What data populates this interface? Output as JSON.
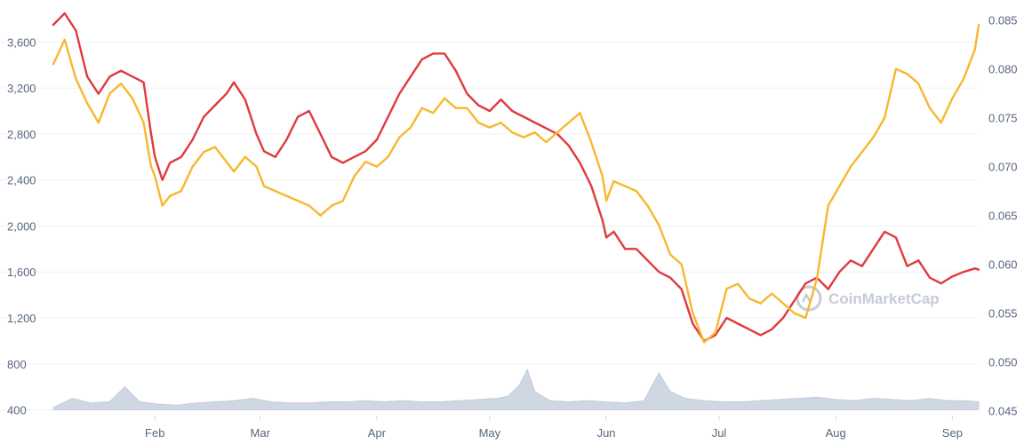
{
  "watermark": "CoinMarketCap",
  "colors": {
    "series_red": "#e03a3e",
    "series_yellow": "#f7b82e",
    "volume": "#cfd6e4",
    "grid": "#eff2f5",
    "text": "#58667e"
  },
  "chart_data": {
    "type": "line",
    "title": "",
    "x_range": [
      "2022-01-05",
      "2022-09-08"
    ],
    "x_ticks": [
      {
        "label": "Feb",
        "date": "2022-02-01"
      },
      {
        "label": "Mar",
        "date": "2022-03-01"
      },
      {
        "label": "Apr",
        "date": "2022-04-01"
      },
      {
        "label": "May",
        "date": "2022-05-01"
      },
      {
        "label": "Jun",
        "date": "2022-06-01"
      },
      {
        "label": "Jul",
        "date": "2022-07-01"
      },
      {
        "label": "Aug",
        "date": "2022-08-01"
      },
      {
        "label": "Sep",
        "date": "2022-09-01"
      }
    ],
    "y_left": {
      "ticks": [
        "400",
        "800",
        "1,200",
        "1,600",
        "2,000",
        "2,400",
        "2,800",
        "3,200",
        "3,600"
      ],
      "range": [
        350,
        3850
      ]
    },
    "y_right": {
      "ticks": [
        "0.045",
        "0.050",
        "0.055",
        "0.060",
        "0.065",
        "0.070",
        "0.075",
        "0.080",
        "0.085"
      ],
      "range": [
        0.0445,
        0.0857
      ]
    },
    "grid": true,
    "series": [
      {
        "axis": "left",
        "color": "#e03a3e",
        "points": [
          [
            "2022-01-05",
            3750
          ],
          [
            "2022-01-08",
            3850
          ],
          [
            "2022-01-11",
            3700
          ],
          [
            "2022-01-14",
            3300
          ],
          [
            "2022-01-17",
            3150
          ],
          [
            "2022-01-20",
            3300
          ],
          [
            "2022-01-23",
            3350
          ],
          [
            "2022-01-26",
            3300
          ],
          [
            "2022-01-29",
            3250
          ],
          [
            "2022-01-31",
            2800
          ],
          [
            "2022-02-01",
            2600
          ],
          [
            "2022-02-03",
            2400
          ],
          [
            "2022-02-05",
            2550
          ],
          [
            "2022-02-08",
            2600
          ],
          [
            "2022-02-11",
            2750
          ],
          [
            "2022-02-14",
            2950
          ],
          [
            "2022-02-17",
            3050
          ],
          [
            "2022-02-20",
            3150
          ],
          [
            "2022-02-22",
            3250
          ],
          [
            "2022-02-25",
            3100
          ],
          [
            "2022-02-28",
            2800
          ],
          [
            "2022-03-02",
            2650
          ],
          [
            "2022-03-05",
            2600
          ],
          [
            "2022-03-08",
            2750
          ],
          [
            "2022-03-11",
            2950
          ],
          [
            "2022-03-14",
            3000
          ],
          [
            "2022-03-17",
            2800
          ],
          [
            "2022-03-20",
            2600
          ],
          [
            "2022-03-23",
            2550
          ],
          [
            "2022-03-26",
            2600
          ],
          [
            "2022-03-29",
            2650
          ],
          [
            "2022-04-01",
            2750
          ],
          [
            "2022-04-04",
            2950
          ],
          [
            "2022-04-07",
            3150
          ],
          [
            "2022-04-10",
            3300
          ],
          [
            "2022-04-13",
            3450
          ],
          [
            "2022-04-16",
            3500
          ],
          [
            "2022-04-19",
            3500
          ],
          [
            "2022-04-22",
            3350
          ],
          [
            "2022-04-25",
            3150
          ],
          [
            "2022-04-28",
            3050
          ],
          [
            "2022-05-01",
            3000
          ],
          [
            "2022-05-04",
            3100
          ],
          [
            "2022-05-07",
            3000
          ],
          [
            "2022-05-10",
            2950
          ],
          [
            "2022-05-13",
            2900
          ],
          [
            "2022-05-16",
            2850
          ],
          [
            "2022-05-19",
            2800
          ],
          [
            "2022-05-22",
            2700
          ],
          [
            "2022-05-25",
            2550
          ],
          [
            "2022-05-28",
            2350
          ],
          [
            "2022-05-31",
            2050
          ],
          [
            "2022-06-01",
            1900
          ],
          [
            "2022-06-03",
            1950
          ],
          [
            "2022-06-06",
            1800
          ],
          [
            "2022-06-09",
            1800
          ],
          [
            "2022-06-12",
            1700
          ],
          [
            "2022-06-15",
            1600
          ],
          [
            "2022-06-18",
            1550
          ],
          [
            "2022-06-21",
            1450
          ],
          [
            "2022-06-24",
            1150
          ],
          [
            "2022-06-27",
            1000
          ],
          [
            "2022-06-30",
            1050
          ],
          [
            "2022-07-03",
            1200
          ],
          [
            "2022-07-06",
            1150
          ],
          [
            "2022-07-09",
            1100
          ],
          [
            "2022-07-12",
            1050
          ],
          [
            "2022-07-15",
            1100
          ],
          [
            "2022-07-18",
            1200
          ],
          [
            "2022-07-21",
            1350
          ],
          [
            "2022-07-24",
            1500
          ],
          [
            "2022-07-27",
            1550
          ],
          [
            "2022-07-30",
            1450
          ],
          [
            "2022-08-02",
            1600
          ],
          [
            "2022-08-05",
            1700
          ],
          [
            "2022-08-08",
            1650
          ],
          [
            "2022-08-11",
            1800
          ],
          [
            "2022-08-14",
            1950
          ],
          [
            "2022-08-17",
            1900
          ],
          [
            "2022-08-20",
            1650
          ],
          [
            "2022-08-23",
            1700
          ],
          [
            "2022-08-26",
            1550
          ],
          [
            "2022-08-29",
            1500
          ],
          [
            "2022-09-01",
            1560
          ],
          [
            "2022-09-04",
            1600
          ],
          [
            "2022-09-07",
            1630
          ],
          [
            "2022-09-08",
            1620
          ]
        ]
      },
      {
        "axis": "right",
        "color": "#f7b82e",
        "points": [
          [
            "2022-01-05",
            0.0805
          ],
          [
            "2022-01-08",
            0.083
          ],
          [
            "2022-01-11",
            0.079
          ],
          [
            "2022-01-14",
            0.0765
          ],
          [
            "2022-01-17",
            0.0745
          ],
          [
            "2022-01-20",
            0.0775
          ],
          [
            "2022-01-23",
            0.0785
          ],
          [
            "2022-01-26",
            0.077
          ],
          [
            "2022-01-29",
            0.0745
          ],
          [
            "2022-01-31",
            0.07
          ],
          [
            "2022-02-01",
            0.069
          ],
          [
            "2022-02-03",
            0.066
          ],
          [
            "2022-02-05",
            0.067
          ],
          [
            "2022-02-08",
            0.0675
          ],
          [
            "2022-02-11",
            0.07
          ],
          [
            "2022-02-14",
            0.0715
          ],
          [
            "2022-02-17",
            0.072
          ],
          [
            "2022-02-20",
            0.0705
          ],
          [
            "2022-02-22",
            0.0695
          ],
          [
            "2022-02-25",
            0.071
          ],
          [
            "2022-02-28",
            0.07
          ],
          [
            "2022-03-02",
            0.068
          ],
          [
            "2022-03-05",
            0.0675
          ],
          [
            "2022-03-08",
            0.067
          ],
          [
            "2022-03-11",
            0.0665
          ],
          [
            "2022-03-14",
            0.066
          ],
          [
            "2022-03-17",
            0.065
          ],
          [
            "2022-03-20",
            0.066
          ],
          [
            "2022-03-23",
            0.0665
          ],
          [
            "2022-03-26",
            0.069
          ],
          [
            "2022-03-29",
            0.0705
          ],
          [
            "2022-04-01",
            0.07
          ],
          [
            "2022-04-04",
            0.071
          ],
          [
            "2022-04-07",
            0.073
          ],
          [
            "2022-04-10",
            0.074
          ],
          [
            "2022-04-13",
            0.076
          ],
          [
            "2022-04-16",
            0.0755
          ],
          [
            "2022-04-19",
            0.077
          ],
          [
            "2022-04-22",
            0.076
          ],
          [
            "2022-04-25",
            0.076
          ],
          [
            "2022-04-28",
            0.0745
          ],
          [
            "2022-05-01",
            0.074
          ],
          [
            "2022-05-04",
            0.0745
          ],
          [
            "2022-05-07",
            0.0735
          ],
          [
            "2022-05-10",
            0.073
          ],
          [
            "2022-05-13",
            0.0735
          ],
          [
            "2022-05-16",
            0.0725
          ],
          [
            "2022-05-19",
            0.0735
          ],
          [
            "2022-05-22",
            0.0745
          ],
          [
            "2022-05-25",
            0.0755
          ],
          [
            "2022-05-28",
            0.0725
          ],
          [
            "2022-05-31",
            0.069
          ],
          [
            "2022-06-01",
            0.0665
          ],
          [
            "2022-06-03",
            0.0685
          ],
          [
            "2022-06-06",
            0.068
          ],
          [
            "2022-06-09",
            0.0675
          ],
          [
            "2022-06-12",
            0.066
          ],
          [
            "2022-06-15",
            0.064
          ],
          [
            "2022-06-18",
            0.061
          ],
          [
            "2022-06-21",
            0.06
          ],
          [
            "2022-06-24",
            0.055
          ],
          [
            "2022-06-27",
            0.052
          ],
          [
            "2022-06-30",
            0.053
          ],
          [
            "2022-07-03",
            0.0575
          ],
          [
            "2022-07-06",
            0.058
          ],
          [
            "2022-07-09",
            0.0565
          ],
          [
            "2022-07-12",
            0.056
          ],
          [
            "2022-07-15",
            0.057
          ],
          [
            "2022-07-18",
            0.056
          ],
          [
            "2022-07-21",
            0.055
          ],
          [
            "2022-07-24",
            0.0545
          ],
          [
            "2022-07-27",
            0.0585
          ],
          [
            "2022-07-30",
            0.066
          ],
          [
            "2022-08-02",
            0.068
          ],
          [
            "2022-08-05",
            0.07
          ],
          [
            "2022-08-08",
            0.0715
          ],
          [
            "2022-08-11",
            0.073
          ],
          [
            "2022-08-14",
            0.075
          ],
          [
            "2022-08-17",
            0.08
          ],
          [
            "2022-08-20",
            0.0795
          ],
          [
            "2022-08-23",
            0.0785
          ],
          [
            "2022-08-26",
            0.076
          ],
          [
            "2022-08-29",
            0.0745
          ],
          [
            "2022-09-01",
            0.077
          ],
          [
            "2022-09-04",
            0.079
          ],
          [
            "2022-09-07",
            0.082
          ],
          [
            "2022-09-08",
            0.0845
          ]
        ]
      }
    ],
    "volume": {
      "points": [
        [
          "2022-01-05",
          420
        ],
        [
          "2022-01-10",
          500
        ],
        [
          "2022-01-15",
          460
        ],
        [
          "2022-01-20",
          470
        ],
        [
          "2022-01-24",
          600
        ],
        [
          "2022-01-28",
          470
        ],
        [
          "2022-02-02",
          450
        ],
        [
          "2022-02-07",
          440
        ],
        [
          "2022-02-12",
          460
        ],
        [
          "2022-02-17",
          470
        ],
        [
          "2022-02-22",
          480
        ],
        [
          "2022-02-27",
          500
        ],
        [
          "2022-03-04",
          470
        ],
        [
          "2022-03-09",
          460
        ],
        [
          "2022-03-14",
          460
        ],
        [
          "2022-03-19",
          470
        ],
        [
          "2022-03-24",
          470
        ],
        [
          "2022-03-29",
          480
        ],
        [
          "2022-04-03",
          470
        ],
        [
          "2022-04-08",
          480
        ],
        [
          "2022-04-13",
          470
        ],
        [
          "2022-04-18",
          470
        ],
        [
          "2022-04-23",
          480
        ],
        [
          "2022-04-28",
          490
        ],
        [
          "2022-05-03",
          500
        ],
        [
          "2022-05-06",
          520
        ],
        [
          "2022-05-09",
          620
        ],
        [
          "2022-05-11",
          750
        ],
        [
          "2022-05-13",
          560
        ],
        [
          "2022-05-17",
          480
        ],
        [
          "2022-05-22",
          470
        ],
        [
          "2022-05-27",
          480
        ],
        [
          "2022-06-01",
          470
        ],
        [
          "2022-06-06",
          460
        ],
        [
          "2022-06-11",
          480
        ],
        [
          "2022-06-13",
          600
        ],
        [
          "2022-06-15",
          720
        ],
        [
          "2022-06-18",
          560
        ],
        [
          "2022-06-22",
          500
        ],
        [
          "2022-06-27",
          480
        ],
        [
          "2022-07-02",
          470
        ],
        [
          "2022-07-07",
          470
        ],
        [
          "2022-07-12",
          480
        ],
        [
          "2022-07-17",
          490
        ],
        [
          "2022-07-22",
          500
        ],
        [
          "2022-07-27",
          510
        ],
        [
          "2022-08-01",
          490
        ],
        [
          "2022-08-06",
          480
        ],
        [
          "2022-08-11",
          500
        ],
        [
          "2022-08-16",
          490
        ],
        [
          "2022-08-21",
          480
        ],
        [
          "2022-08-26",
          500
        ],
        [
          "2022-08-31",
          480
        ],
        [
          "2022-09-04",
          480
        ],
        [
          "2022-09-08",
          470
        ]
      ],
      "min": 400
    }
  }
}
